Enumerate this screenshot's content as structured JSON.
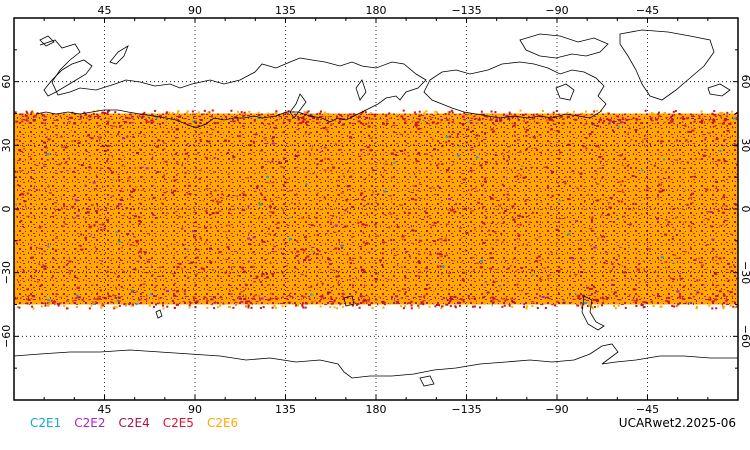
{
  "map": {
    "product_label": "UCARwet2.2025-06",
    "colors": {
      "frame": "#000000",
      "land": "#000000",
      "grid": "#000000",
      "occult_dominant": "#ffaa00",
      "occult_secondary": "#cc1122"
    },
    "lon_ticks": [
      {
        "lon": 45,
        "label": "45"
      },
      {
        "lon": 90,
        "label": "90"
      },
      {
        "lon": 135,
        "label": "135"
      },
      {
        "lon": 180,
        "label": "180"
      },
      {
        "lon": 225,
        "label": "−135"
      },
      {
        "lon": 270,
        "label": "−90"
      },
      {
        "lon": 315,
        "label": "−45"
      }
    ],
    "lat_ticks": [
      {
        "lat": 60,
        "label": "60"
      },
      {
        "lat": 30,
        "label": "30"
      },
      {
        "lat": 0,
        "label": "0"
      },
      {
        "lat": -30,
        "label": "−30"
      },
      {
        "lat": -60,
        "label": "−60"
      }
    ],
    "coverage_lat_range": [
      -45,
      45
    ],
    "legend": [
      {
        "label": "C2E1",
        "color": "#11aacc"
      },
      {
        "label": "C2E2",
        "color": "#aa22cc"
      },
      {
        "label": "C2E4",
        "color": "#aa1144"
      },
      {
        "label": "C2E5",
        "color": "#dd1133"
      },
      {
        "label": "C2E6",
        "color": "#ffaa00"
      }
    ]
  }
}
